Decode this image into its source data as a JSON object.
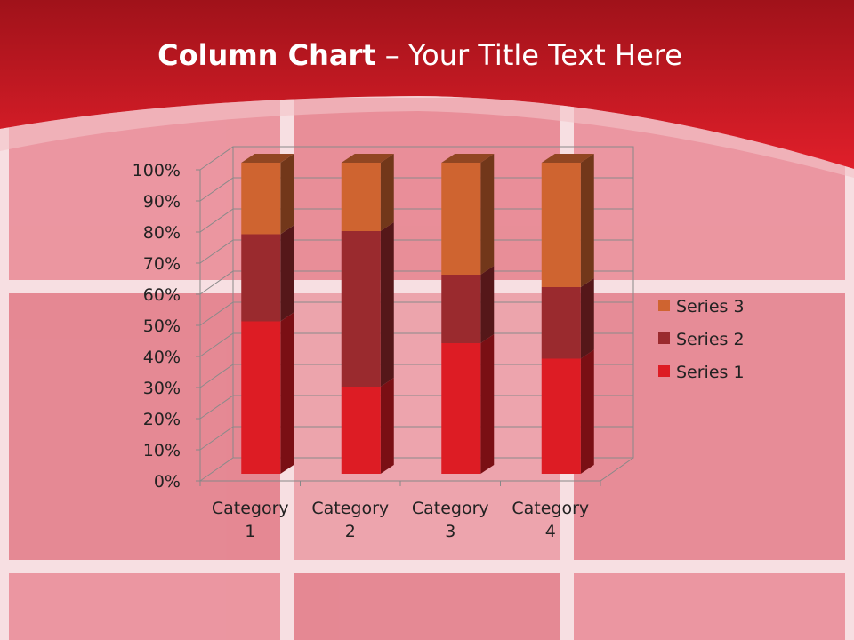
{
  "chart_data": {
    "type": "bar",
    "stacked": true,
    "three_d": true,
    "title": {
      "bold": "Column Chart",
      "rest": "– Your Title Text Here"
    },
    "categories": [
      "Category 1",
      "Category 2",
      "Category 3",
      "Category 4"
    ],
    "series": [
      {
        "name": "Series 1",
        "color": "#dd1c24",
        "values": [
          49,
          28,
          42,
          37
        ]
      },
      {
        "name": "Series 2",
        "color": "#9a2a2e",
        "values": [
          28,
          50,
          22,
          23
        ]
      },
      {
        "name": "Series 3",
        "color": "#cf6430",
        "values": [
          23,
          22,
          36,
          40
        ]
      }
    ],
    "ylim": [
      0,
      100
    ],
    "yticks": [
      {
        "value": 0,
        "label": "0%"
      },
      {
        "value": 10,
        "label": "10%"
      },
      {
        "value": 20,
        "label": "20%"
      },
      {
        "value": 30,
        "label": "30%"
      },
      {
        "value": 40,
        "label": "40%"
      },
      {
        "value": 50,
        "label": "50%"
      },
      {
        "value": 60,
        "label": "60%"
      },
      {
        "value": 70,
        "label": "70%"
      },
      {
        "value": 80,
        "label": "80%"
      },
      {
        "value": 90,
        "label": "90%"
      },
      {
        "value": 100,
        "label": "100%"
      }
    ],
    "grid": true,
    "legend": "right"
  }
}
